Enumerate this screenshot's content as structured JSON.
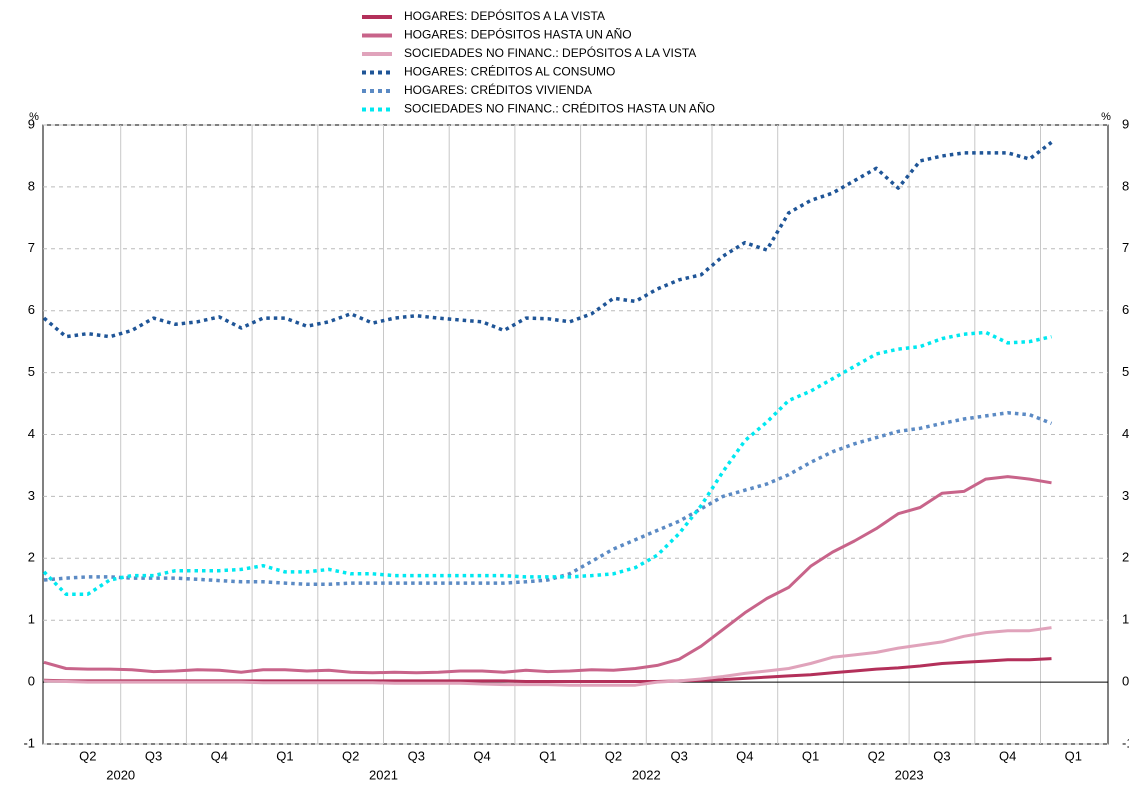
{
  "chart_data": {
    "type": "line",
    "y_unit": "%",
    "quarter_labels": [
      "Q2",
      "Q3",
      "Q4",
      "Q1",
      "Q2",
      "Q3",
      "Q4",
      "Q1",
      "Q2",
      "Q3",
      "Q4",
      "Q1",
      "Q2",
      "Q3",
      "Q4",
      "Q1"
    ],
    "year_labels": [
      "2020",
      "2021",
      "2022",
      "2023"
    ],
    "ylim": [
      -1,
      9
    ],
    "yticks": [
      -1,
      0,
      1,
      2,
      3,
      4,
      5,
      6,
      7,
      8,
      9
    ],
    "grid": true,
    "series": [
      {
        "name": "HOGARES: DEPÓSITOS A LA VISTA",
        "color": "#b3305a",
        "style": "solid",
        "values": [
          0.03,
          0.02,
          0.02,
          0.02,
          0.02,
          0.02,
          0.02,
          0.02,
          0.02,
          0.02,
          0.02,
          0.02,
          0.02,
          0.02,
          0.02,
          0.02,
          0.02,
          0.02,
          0.02,
          0.02,
          0.02,
          0.02,
          0.01,
          0.01,
          0.01,
          0.01,
          0.01,
          0.01,
          0.01,
          0.02,
          0.03,
          0.04,
          0.06,
          0.08,
          0.1,
          0.12,
          0.15,
          0.18,
          0.21,
          0.23,
          0.26,
          0.3,
          0.32,
          0.34,
          0.36,
          0.36,
          0.38
        ]
      },
      {
        "name": "HOGARES: DEPÓSITOS HASTA UN AÑO",
        "color": "#c8648a",
        "style": "solid",
        "values": [
          0.32,
          0.22,
          0.21,
          0.21,
          0.2,
          0.17,
          0.18,
          0.2,
          0.19,
          0.16,
          0.2,
          0.2,
          0.18,
          0.19,
          0.16,
          0.15,
          0.16,
          0.15,
          0.16,
          0.18,
          0.18,
          0.16,
          0.19,
          0.17,
          0.18,
          0.2,
          0.19,
          0.22,
          0.27,
          0.37,
          0.58,
          0.85,
          1.12,
          1.35,
          1.53,
          1.87,
          2.1,
          2.28,
          2.48,
          2.72,
          2.82,
          3.05,
          3.08,
          3.28,
          3.32,
          3.28,
          3.22
        ]
      },
      {
        "name": "SOCIEDADES NO FINANC.: DEPÓSITOS A LA VISTA",
        "color": "#e0a3bb",
        "style": "solid",
        "values": [
          0.02,
          0.01,
          0.0,
          0.0,
          0.0,
          0.0,
          0.0,
          0.0,
          0.0,
          0.0,
          -0.01,
          -0.01,
          -0.01,
          -0.01,
          -0.01,
          -0.01,
          -0.02,
          -0.02,
          -0.02,
          -0.02,
          -0.03,
          -0.04,
          -0.04,
          -0.04,
          -0.05,
          -0.05,
          -0.05,
          -0.05,
          0.0,
          0.02,
          0.05,
          0.09,
          0.14,
          0.18,
          0.22,
          0.3,
          0.4,
          0.44,
          0.48,
          0.55,
          0.6,
          0.65,
          0.74,
          0.8,
          0.83,
          0.83,
          0.88
        ]
      },
      {
        "name": "HOGARES: CRÉDITOS AL CONSUMO",
        "color": "#1f5597",
        "style": "dotted",
        "values": [
          5.88,
          5.58,
          5.63,
          5.58,
          5.68,
          5.88,
          5.78,
          5.82,
          5.9,
          5.72,
          5.88,
          5.88,
          5.75,
          5.82,
          5.95,
          5.8,
          5.88,
          5.92,
          5.88,
          5.85,
          5.82,
          5.68,
          5.88,
          5.87,
          5.82,
          5.95,
          6.2,
          6.15,
          6.35,
          6.5,
          6.58,
          6.88,
          7.1,
          6.98,
          7.58,
          7.78,
          7.9,
          8.1,
          8.3,
          7.98,
          8.42,
          8.5,
          8.55,
          8.55,
          8.55,
          8.45,
          8.72
        ]
      },
      {
        "name": "HOGARES: CRÉDITOS VIVIENDA",
        "color": "#5b8ac4",
        "style": "dotted",
        "values": [
          1.65,
          1.68,
          1.7,
          1.7,
          1.68,
          1.68,
          1.68,
          1.66,
          1.64,
          1.62,
          1.62,
          1.6,
          1.58,
          1.58,
          1.6,
          1.6,
          1.6,
          1.6,
          1.6,
          1.6,
          1.6,
          1.6,
          1.62,
          1.65,
          1.75,
          1.95,
          2.15,
          2.3,
          2.45,
          2.6,
          2.8,
          3.0,
          3.1,
          3.2,
          3.35,
          3.55,
          3.72,
          3.85,
          3.95,
          4.05,
          4.1,
          4.18,
          4.25,
          4.3,
          4.35,
          4.32,
          4.18
        ]
      },
      {
        "name": "SOCIEDADES NO FINANC.: CRÉDITOS HASTA UN AÑO",
        "color": "#00e8f0",
        "style": "dotted",
        "values": [
          1.78,
          1.42,
          1.42,
          1.65,
          1.72,
          1.72,
          1.8,
          1.8,
          1.8,
          1.82,
          1.88,
          1.78,
          1.78,
          1.82,
          1.75,
          1.75,
          1.72,
          1.72,
          1.72,
          1.72,
          1.72,
          1.72,
          1.7,
          1.7,
          1.7,
          1.72,
          1.75,
          1.85,
          2.05,
          2.4,
          2.85,
          3.4,
          3.9,
          4.2,
          4.55,
          4.7,
          4.9,
          5.1,
          5.3,
          5.38,
          5.42,
          5.55,
          5.62,
          5.65,
          5.48,
          5.5,
          5.58
        ]
      }
    ]
  }
}
